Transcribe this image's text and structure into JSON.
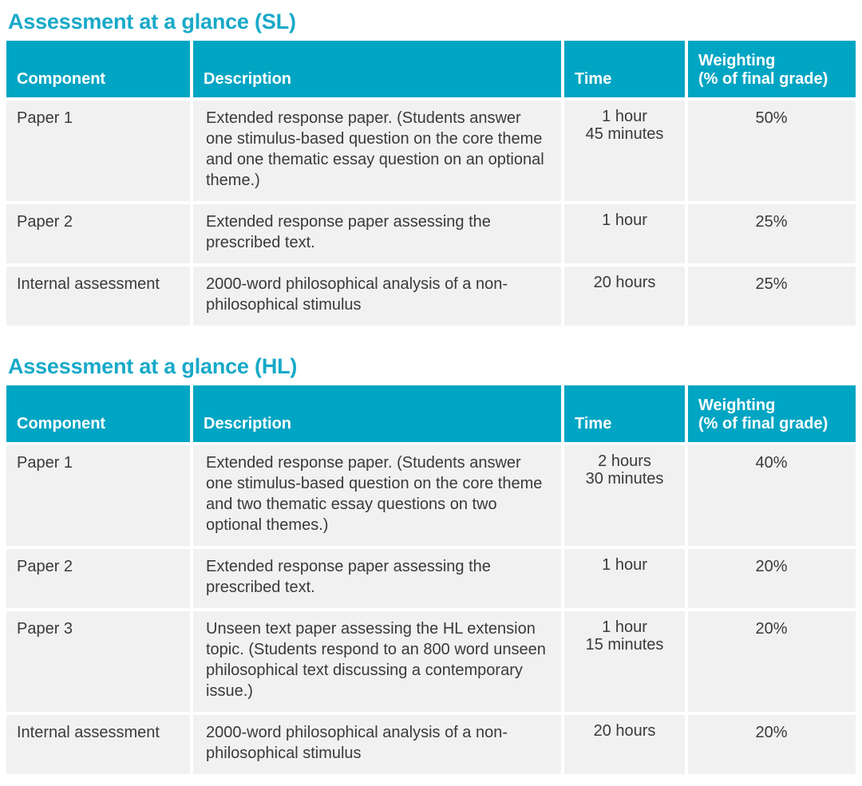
{
  "colors": {
    "accent_teal": "#00a5c3",
    "title_teal": "#18a9c9",
    "row_gray": "#f1f1f1",
    "body_text": "#3a3a3a",
    "header_text": "#ffffff",
    "page_bg": "#ffffff"
  },
  "tables": [
    {
      "title": "Assessment at a glance (SL)",
      "columns": {
        "component": "Component",
        "description": "Description",
        "time": "Time",
        "weighting": "Weighting\n(% of final grade)"
      },
      "rows": [
        {
          "component": "Paper 1",
          "description": "Extended response paper. (Students answer one stimulus-based question on the core theme and one thematic essay question on an optional theme.)",
          "time": "1 hour\n45 minutes",
          "weighting": "50%"
        },
        {
          "component": "Paper 2",
          "description": "Extended response paper assessing the prescribed text.",
          "time": "1 hour",
          "weighting": "25%"
        },
        {
          "component": "Internal assessment",
          "description": "2000-word philosophical analysis of a non-philosophical stimulus",
          "time": "20 hours",
          "weighting": "25%"
        }
      ]
    },
    {
      "title": "Assessment at a glance (HL)",
      "columns": {
        "component": "Component",
        "description": "Description",
        "time": "Time",
        "weighting": "Weighting\n(% of final grade)"
      },
      "rows": [
        {
          "component": "Paper 1",
          "description": "Extended response paper. (Students answer one stimulus-based question on the core theme and two thematic essay questions on two optional themes.)",
          "time": "2 hours\n30 minutes",
          "weighting": "40%"
        },
        {
          "component": "Paper 2",
          "description": "Extended response paper assessing the prescribed text.",
          "time": "1 hour",
          "weighting": "20%"
        },
        {
          "component": "Paper 3",
          "description": "Unseen text paper assessing the HL extension topic. (Students respond to an 800 word unseen philosophical text discussing a contemporary issue.)",
          "time": "1 hour\n15 minutes",
          "weighting": "20%"
        },
        {
          "component": "Internal assessment",
          "description": "2000-word philosophical analysis of a non-philosophical stimulus",
          "time": "20 hours",
          "weighting": "20%"
        }
      ]
    }
  ]
}
